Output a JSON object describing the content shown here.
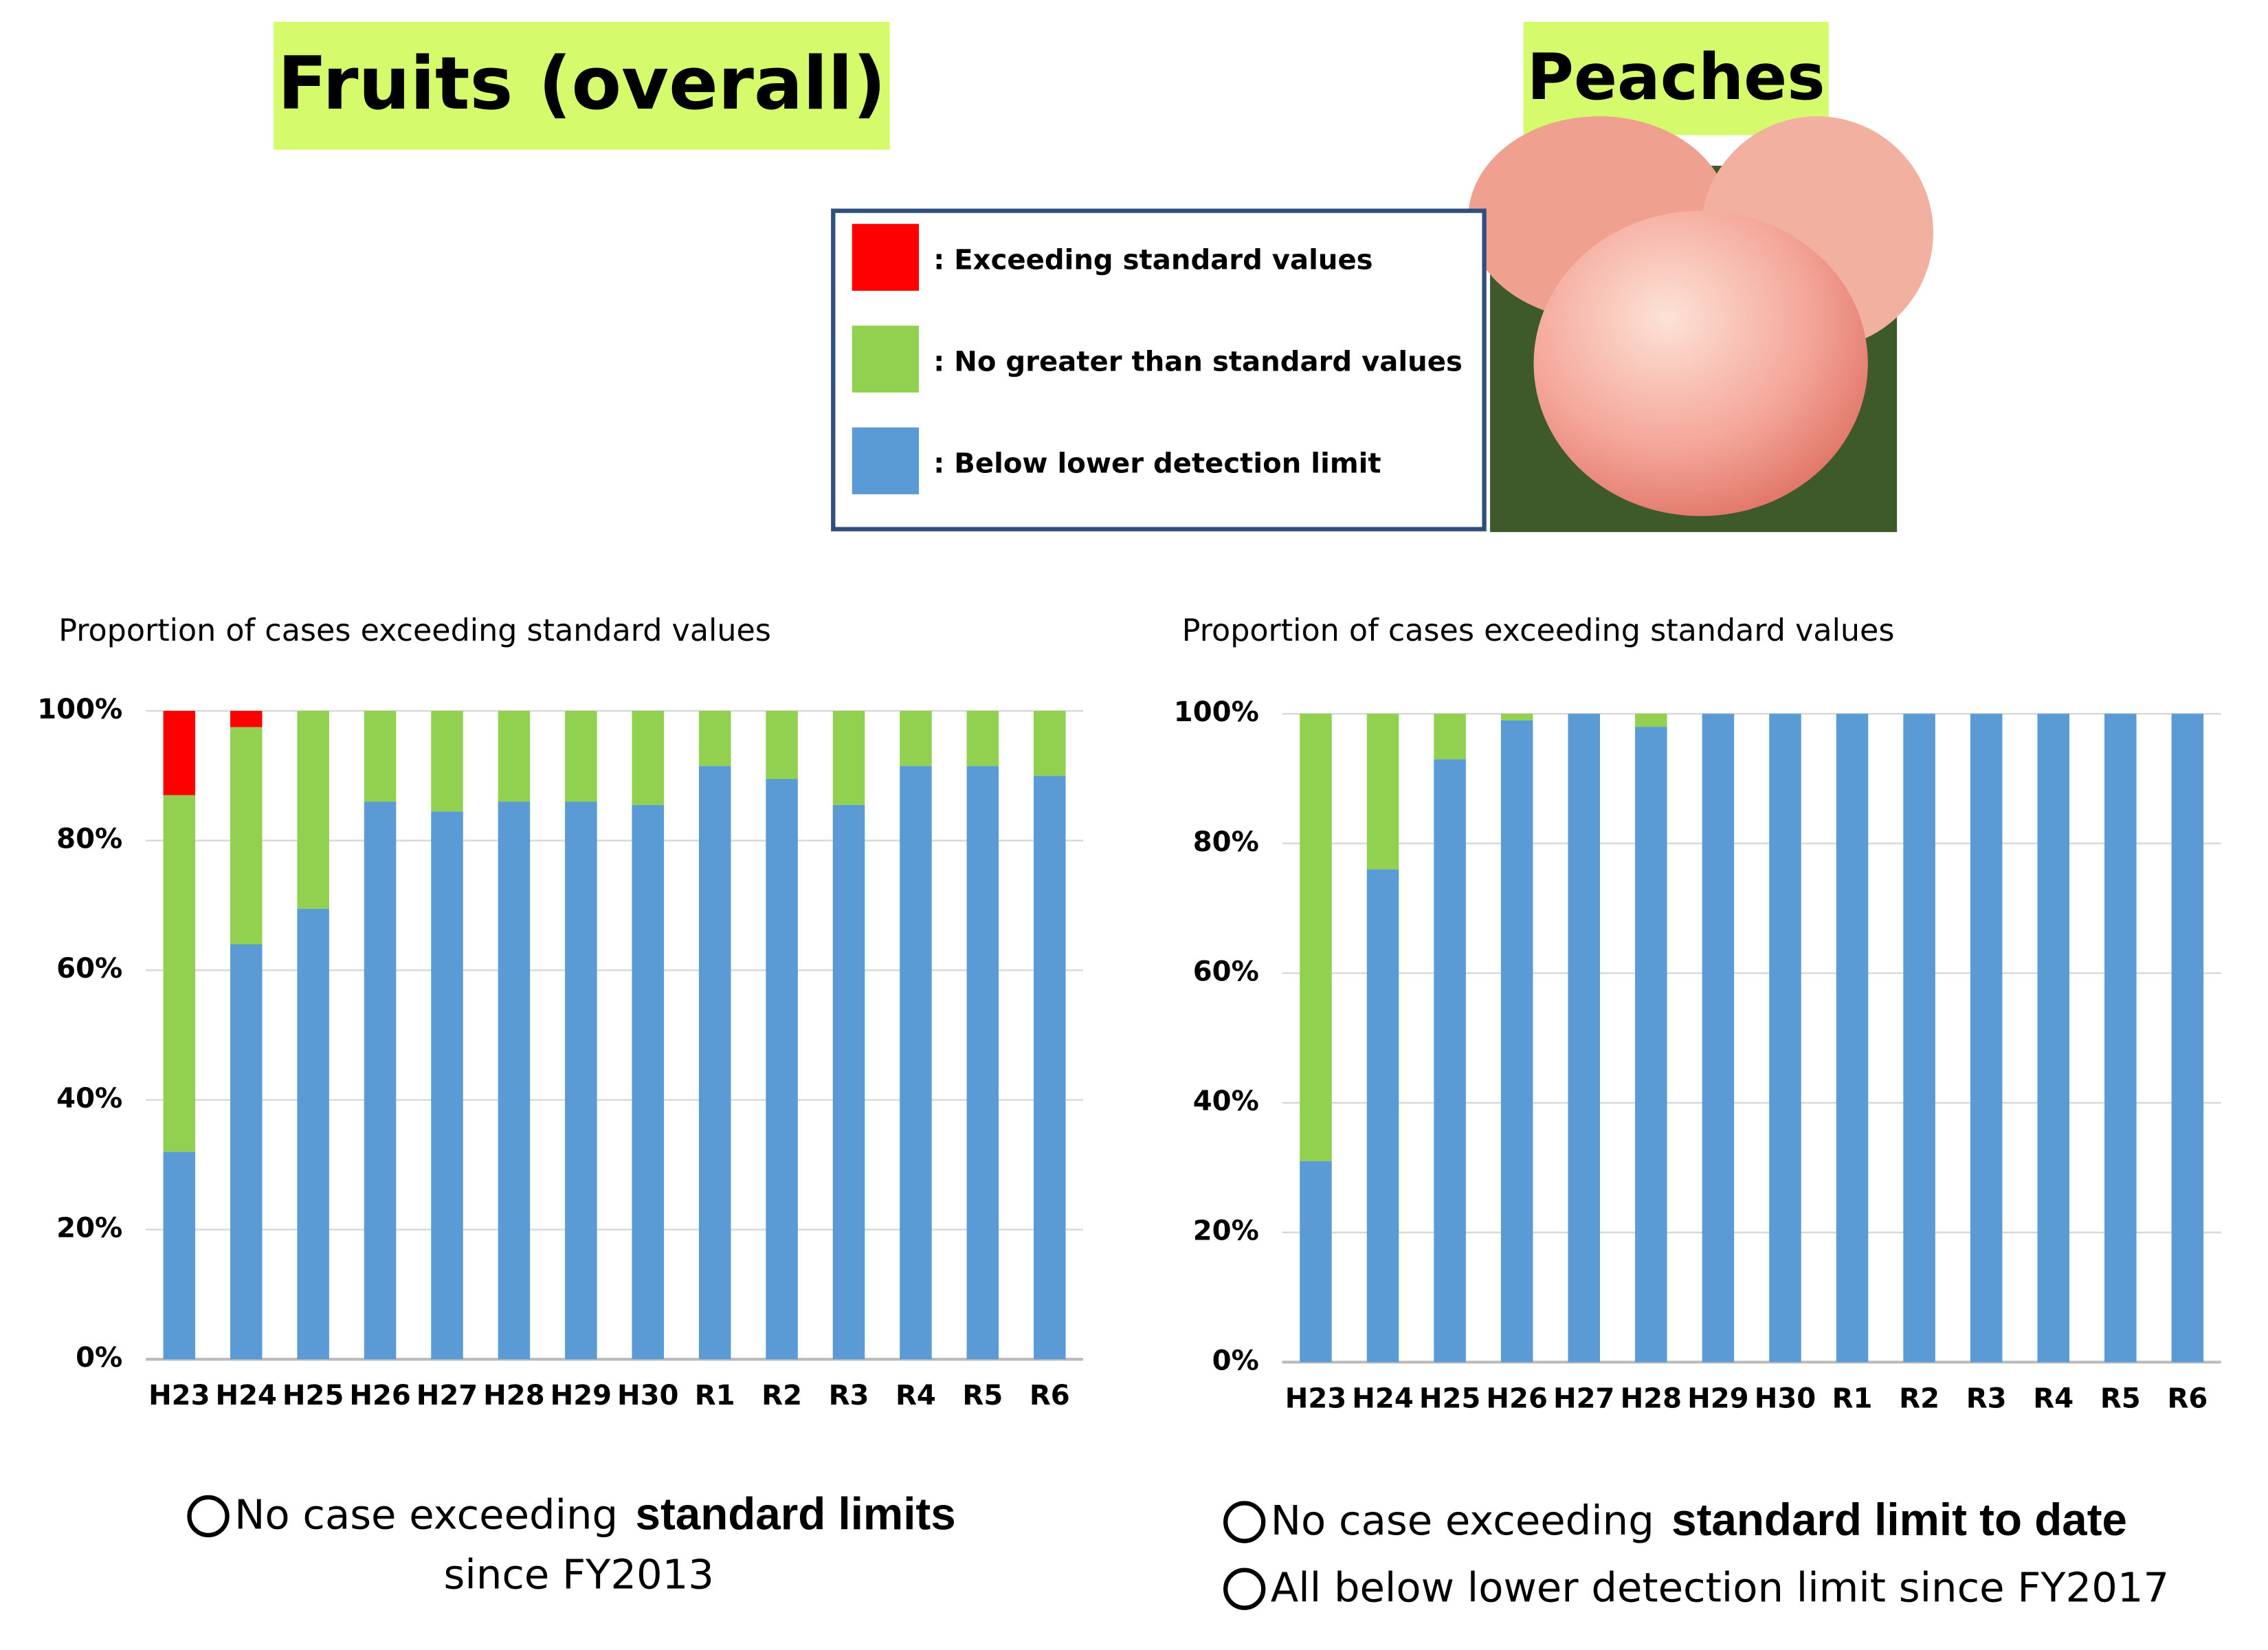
{
  "chart_data": [
    {
      "type": "stacked-bar",
      "title": "Fruits (overall)",
      "subtitle": "Proportion of cases exceeding standard values",
      "categories": [
        "H23",
        "H24",
        "H25",
        "H26",
        "H27",
        "H28",
        "H29",
        "H30",
        "R1",
        "R2",
        "R3",
        "R4",
        "R5",
        "R6"
      ],
      "series": [
        {
          "name": ": Exceeding standard values",
          "color": "#ff0000",
          "values": [
            13,
            2.5,
            0,
            0,
            0,
            0,
            0,
            0,
            0,
            0,
            0,
            0,
            0,
            0
          ]
        },
        {
          "name": ": No greater than standard values",
          "color": "#92d050",
          "values": [
            55,
            33.5,
            30.5,
            14,
            15.5,
            14,
            14,
            14.5,
            8.5,
            10.5,
            14.5,
            8.5,
            8.5,
            10
          ]
        },
        {
          "name": ": Below lower detection limit",
          "color": "#5b9bd5",
          "values": [
            32,
            64,
            69.5,
            86,
            84.5,
            86,
            86,
            85.5,
            91.5,
            89.5,
            85.5,
            91.5,
            91.5,
            90
          ]
        }
      ],
      "ylim": [
        0,
        100
      ],
      "yticks": [
        {
          "value": 0,
          "label": "0%"
        },
        {
          "value": 20,
          "label": "20%"
        },
        {
          "value": 40,
          "label": "40%"
        },
        {
          "value": 60,
          "label": "60%"
        },
        {
          "value": 80,
          "label": "80%"
        },
        {
          "value": 100,
          "label": "100%"
        }
      ],
      "grid": true,
      "notes": [
        {
          "text": "No case exceeding",
          "emphasis": "standard limits",
          "end": "since FY2013"
        }
      ]
    },
    {
      "type": "stacked-bar",
      "title": "Peaches",
      "subtitle": "Proportion of cases exceeding standard values",
      "categories": [
        "H23",
        "H24",
        "H25",
        "H26",
        "H27",
        "H28",
        "H29",
        "H30",
        "R1",
        "R2",
        "R3",
        "R4",
        "R5",
        "R6"
      ],
      "series": [
        {
          "name": ": Exceeding standard values",
          "color": "#ff0000",
          "values": [
            0,
            0,
            0,
            0,
            0,
            0,
            0,
            0,
            0,
            0,
            0,
            0,
            0,
            0
          ]
        },
        {
          "name": ": No greater than standard values",
          "color": "#92d050",
          "values": [
            69,
            24,
            7,
            1,
            0,
            2,
            0,
            0,
            0,
            0,
            0,
            0,
            0,
            0
          ]
        },
        {
          "name": ": Below lower detection limit",
          "color": "#5b9bd5",
          "values": [
            31,
            76,
            93,
            99,
            100,
            98,
            100,
            100,
            100,
            100,
            100,
            100,
            100,
            100
          ]
        }
      ],
      "ylim": [
        0,
        100
      ],
      "yticks": [
        {
          "value": 0,
          "label": "0%"
        },
        {
          "value": 20,
          "label": "20%"
        },
        {
          "value": 40,
          "label": "40%"
        },
        {
          "value": 60,
          "label": "60%"
        },
        {
          "value": 80,
          "label": "80%"
        },
        {
          "value": 100,
          "label": "100%"
        }
      ],
      "grid": true,
      "notes": [
        {
          "text": "No case exceeding",
          "emphasis": "standard limit to date"
        },
        {
          "text": "All below lower detection limit since FY2017"
        }
      ]
    }
  ]
}
